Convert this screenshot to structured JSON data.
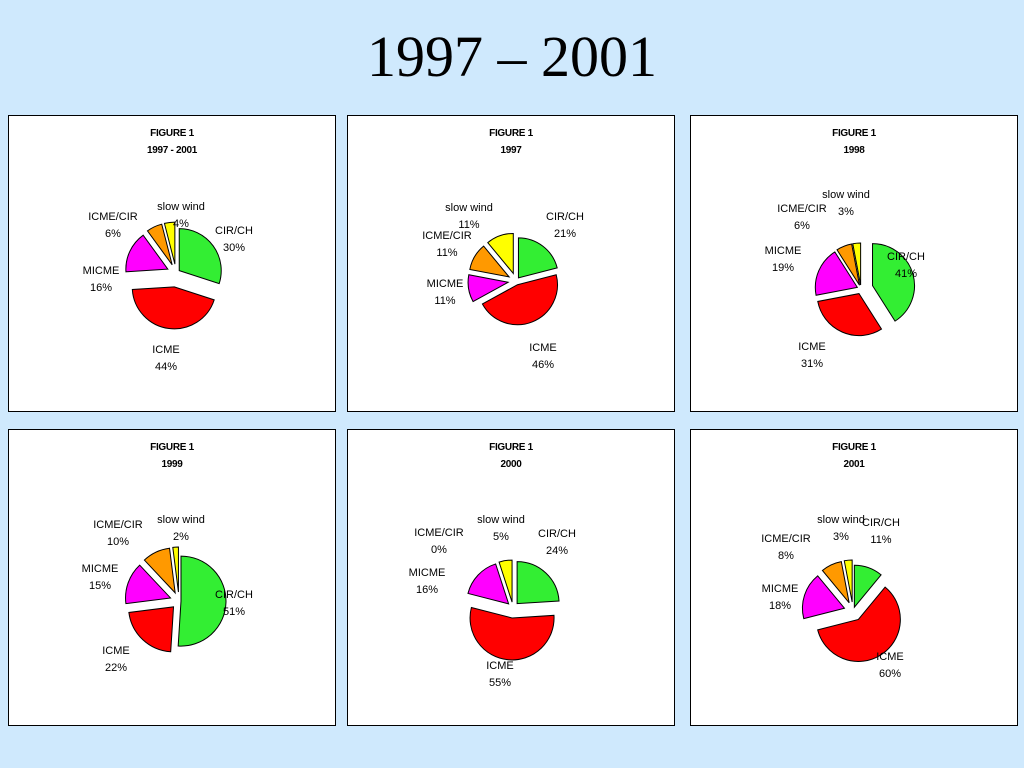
{
  "page": {
    "title": "1997 – 2001"
  },
  "colors": {
    "CIR/CH": "#33ee33",
    "ICME": "#ff0000",
    "MICME": "#ff00ff",
    "ICME/CIR": "#ff9900",
    "slow wind": "#ffff00"
  },
  "chart_data": [
    {
      "type": "pie",
      "header_line1": "FIGURE 1",
      "header_line2": "1997 - 2001",
      "slices": [
        {
          "name": "CIR/CH",
          "pct_label": "30%",
          "value": 30
        },
        {
          "name": "ICME",
          "pct_label": "44%",
          "value": 44
        },
        {
          "name": "MICME",
          "pct_label": "16%",
          "value": 16
        },
        {
          "name": "ICME/CIR",
          "pct_label": "6%",
          "value": 6
        },
        {
          "name": "slow wind",
          "pct_label": "4%",
          "value": 4
        }
      ]
    },
    {
      "type": "pie",
      "header_line1": "FIGURE 1",
      "header_line2": "1997",
      "slices": [
        {
          "name": "CIR/CH",
          "pct_label": "21%",
          "value": 21
        },
        {
          "name": "ICME",
          "pct_label": "46%",
          "value": 46
        },
        {
          "name": "MICME",
          "pct_label": "11%",
          "value": 11
        },
        {
          "name": "ICME/CIR",
          "pct_label": "11%",
          "value": 11
        },
        {
          "name": "slow wind",
          "pct_label": "11%",
          "value": 11
        }
      ]
    },
    {
      "type": "pie",
      "header_line1": "FIGURE 1",
      "header_line2": "1998",
      "slices": [
        {
          "name": "CIR/CH",
          "pct_label": "41%",
          "value": 41
        },
        {
          "name": "ICME",
          "pct_label": "31%",
          "value": 31
        },
        {
          "name": "MICME",
          "pct_label": "19%",
          "value": 19
        },
        {
          "name": "ICME/CIR",
          "pct_label": "6%",
          "value": 6
        },
        {
          "name": "slow wind",
          "pct_label": "3%",
          "value": 3
        }
      ]
    },
    {
      "type": "pie",
      "header_line1": "FIGURE 1",
      "header_line2": "1999",
      "slices": [
        {
          "name": "CIR/CH",
          "pct_label": "51%",
          "value": 51
        },
        {
          "name": "ICME",
          "pct_label": "22%",
          "value": 22
        },
        {
          "name": "MICME",
          "pct_label": "15%",
          "value": 15
        },
        {
          "name": "ICME/CIR",
          "pct_label": "10%",
          "value": 10
        },
        {
          "name": "slow wind",
          "pct_label": "2%",
          "value": 2
        }
      ]
    },
    {
      "type": "pie",
      "header_line1": "FIGURE 1",
      "header_line2": "2000",
      "slices": [
        {
          "name": "CIR/CH",
          "pct_label": "24%",
          "value": 24
        },
        {
          "name": "ICME",
          "pct_label": "55%",
          "value": 55
        },
        {
          "name": "MICME",
          "pct_label": "16%",
          "value": 16
        },
        {
          "name": "ICME/CIR",
          "pct_label": "0%",
          "value": 0
        },
        {
          "name": "slow wind",
          "pct_label": "5%",
          "value": 5
        }
      ]
    },
    {
      "type": "pie",
      "header_line1": "FIGURE 1",
      "header_line2": "2001",
      "slices": [
        {
          "name": "CIR/CH",
          "pct_label": "11%",
          "value": 11
        },
        {
          "name": "ICME",
          "pct_label": "60%",
          "value": 60
        },
        {
          "name": "MICME",
          "pct_label": "18%",
          "value": 18
        },
        {
          "name": "ICME/CIR",
          "pct_label": "8%",
          "value": 8
        },
        {
          "name": "slow wind",
          "pct_label": "3%",
          "value": 3
        }
      ]
    }
  ]
}
